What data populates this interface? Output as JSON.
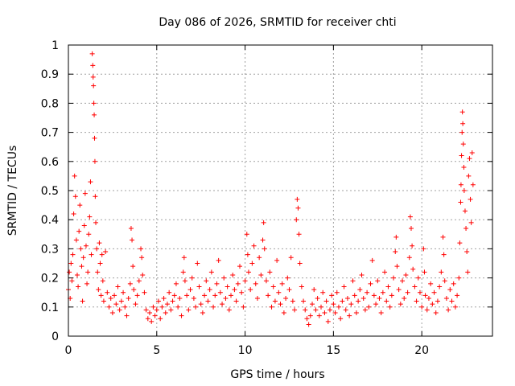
{
  "chart_data": {
    "type": "scatter",
    "title": "Day 086 of 2026, SRMTID for receiver chti",
    "xlabel": "GPS time / hours",
    "ylabel": "SRMTID / TECUs",
    "xlim": [
      0,
      24
    ],
    "ylim": [
      0,
      1
    ],
    "xticks": [
      0,
      5,
      10,
      15,
      20
    ],
    "yticks": [
      0,
      0.1,
      0.2,
      0.3,
      0.4,
      0.5,
      0.6,
      0.7,
      0.8,
      0.9,
      1
    ],
    "x_tick_labels": [
      "0",
      "5",
      "10",
      "15",
      "20"
    ],
    "y_tick_labels": [
      "0",
      "0.1",
      "0.2",
      "0.3",
      "0.4",
      "0.5",
      "0.6",
      "0.7",
      "0.8",
      "0.9",
      "1"
    ],
    "grid": true,
    "marker": "+",
    "color": "#ff0000",
    "series": [
      {
        "name": "SRMTID",
        "points": [
          [
            0.0,
            0.16
          ],
          [
            0.05,
            0.22
          ],
          [
            0.1,
            0.13
          ],
          [
            0.15,
            0.25
          ],
          [
            0.2,
            0.19
          ],
          [
            0.25,
            0.28
          ],
          [
            0.3,
            0.42
          ],
          [
            0.35,
            0.55
          ],
          [
            0.4,
            0.48
          ],
          [
            0.45,
            0.33
          ],
          [
            0.5,
            0.21
          ],
          [
            0.55,
            0.17
          ],
          [
            0.6,
            0.36
          ],
          [
            0.65,
            0.45
          ],
          [
            0.7,
            0.3
          ],
          [
            0.75,
            0.24
          ],
          [
            0.8,
            0.12
          ],
          [
            0.85,
            0.27
          ],
          [
            0.9,
            0.38
          ],
          [
            0.95,
            0.49
          ],
          [
            1.0,
            0.31
          ],
          [
            1.05,
            0.18
          ],
          [
            1.1,
            0.22
          ],
          [
            1.15,
            0.35
          ],
          [
            1.2,
            0.41
          ],
          [
            1.25,
            0.53
          ],
          [
            1.3,
            0.28
          ],
          [
            1.35,
            0.97
          ],
          [
            1.38,
            0.93
          ],
          [
            1.4,
            0.89
          ],
          [
            1.42,
            0.86
          ],
          [
            1.44,
            0.8
          ],
          [
            1.46,
            0.76
          ],
          [
            1.48,
            0.68
          ],
          [
            1.5,
            0.6
          ],
          [
            1.52,
            0.48
          ],
          [
            1.55,
            0.39
          ],
          [
            1.6,
            0.3
          ],
          [
            1.65,
            0.22
          ],
          [
            1.7,
            0.16
          ],
          [
            1.75,
            0.32
          ],
          [
            1.8,
            0.25
          ],
          [
            1.85,
            0.14
          ],
          [
            1.9,
            0.28
          ],
          [
            1.95,
            0.19
          ],
          [
            2.0,
            0.12
          ],
          [
            2.1,
            0.29
          ],
          [
            2.2,
            0.15
          ],
          [
            2.3,
            0.1
          ],
          [
            2.4,
            0.13
          ],
          [
            2.5,
            0.08
          ],
          [
            2.6,
            0.14
          ],
          [
            2.7,
            0.11
          ],
          [
            2.8,
            0.17
          ],
          [
            2.9,
            0.09
          ],
          [
            3.0,
            0.12
          ],
          [
            3.1,
            0.15
          ],
          [
            3.2,
            0.1
          ],
          [
            3.3,
            0.07
          ],
          [
            3.4,
            0.13
          ],
          [
            3.5,
            0.18
          ],
          [
            3.55,
            0.37
          ],
          [
            3.6,
            0.33
          ],
          [
            3.65,
            0.24
          ],
          [
            3.7,
            0.16
          ],
          [
            3.8,
            0.11
          ],
          [
            3.9,
            0.14
          ],
          [
            4.0,
            0.19
          ],
          [
            4.1,
            0.3
          ],
          [
            4.15,
            0.27
          ],
          [
            4.2,
            0.21
          ],
          [
            4.3,
            0.15
          ],
          [
            4.4,
            0.09
          ],
          [
            4.5,
            0.06
          ],
          [
            4.6,
            0.08
          ],
          [
            4.7,
            0.05
          ],
          [
            4.8,
            0.1
          ],
          [
            4.9,
            0.07
          ],
          [
            5.0,
            0.09
          ],
          [
            5.1,
            0.12
          ],
          [
            5.2,
            0.06
          ],
          [
            5.3,
            0.1
          ],
          [
            5.4,
            0.13
          ],
          [
            5.5,
            0.08
          ],
          [
            5.6,
            0.11
          ],
          [
            5.7,
            0.15
          ],
          [
            5.8,
            0.09
          ],
          [
            5.9,
            0.12
          ],
          [
            6.0,
            0.14
          ],
          [
            6.1,
            0.18
          ],
          [
            6.2,
            0.1
          ],
          [
            6.3,
            0.13
          ],
          [
            6.4,
            0.07
          ],
          [
            6.5,
            0.22
          ],
          [
            6.55,
            0.27
          ],
          [
            6.6,
            0.19
          ],
          [
            6.7,
            0.14
          ],
          [
            6.8,
            0.09
          ],
          [
            6.9,
            0.16
          ],
          [
            7.0,
            0.2
          ],
          [
            7.1,
            0.13
          ],
          [
            7.2,
            0.1
          ],
          [
            7.3,
            0.25
          ],
          [
            7.4,
            0.17
          ],
          [
            7.5,
            0.11
          ],
          [
            7.6,
            0.08
          ],
          [
            7.7,
            0.14
          ],
          [
            7.8,
            0.19
          ],
          [
            7.9,
            0.12
          ],
          [
            8.0,
            0.16
          ],
          [
            8.1,
            0.22
          ],
          [
            8.2,
            0.1
          ],
          [
            8.3,
            0.14
          ],
          [
            8.4,
            0.18
          ],
          [
            8.5,
            0.26
          ],
          [
            8.6,
            0.15
          ],
          [
            8.7,
            0.11
          ],
          [
            8.8,
            0.2
          ],
          [
            8.9,
            0.13
          ],
          [
            9.0,
            0.17
          ],
          [
            9.1,
            0.09
          ],
          [
            9.2,
            0.14
          ],
          [
            9.3,
            0.21
          ],
          [
            9.4,
            0.16
          ],
          [
            9.5,
            0.12
          ],
          [
            9.6,
            0.18
          ],
          [
            9.7,
            0.24
          ],
          [
            9.8,
            0.15
          ],
          [
            9.9,
            0.1
          ],
          [
            10.0,
            0.19
          ],
          [
            10.1,
            0.35
          ],
          [
            10.15,
            0.28
          ],
          [
            10.2,
            0.22
          ],
          [
            10.3,
            0.16
          ],
          [
            10.4,
            0.25
          ],
          [
            10.5,
            0.31
          ],
          [
            10.6,
            0.18
          ],
          [
            10.7,
            0.13
          ],
          [
            10.8,
            0.27
          ],
          [
            10.9,
            0.21
          ],
          [
            11.0,
            0.33
          ],
          [
            11.05,
            0.39
          ],
          [
            11.1,
            0.3
          ],
          [
            11.2,
            0.19
          ],
          [
            11.3,
            0.14
          ],
          [
            11.4,
            0.22
          ],
          [
            11.5,
            0.1
          ],
          [
            11.6,
            0.17
          ],
          [
            11.7,
            0.12
          ],
          [
            11.8,
            0.26
          ],
          [
            11.9,
            0.15
          ],
          [
            12.0,
            0.11
          ],
          [
            12.1,
            0.18
          ],
          [
            12.2,
            0.08
          ],
          [
            12.3,
            0.13
          ],
          [
            12.4,
            0.2
          ],
          [
            12.5,
            0.16
          ],
          [
            12.6,
            0.27
          ],
          [
            12.7,
            0.12
          ],
          [
            12.8,
            0.09
          ],
          [
            12.9,
            0.4
          ],
          [
            12.95,
            0.47
          ],
          [
            13.0,
            0.44
          ],
          [
            13.05,
            0.35
          ],
          [
            13.1,
            0.25
          ],
          [
            13.2,
            0.17
          ],
          [
            13.3,
            0.12
          ],
          [
            13.4,
            0.09
          ],
          [
            13.5,
            0.06
          ],
          [
            13.6,
            0.04
          ],
          [
            13.7,
            0.07
          ],
          [
            13.8,
            0.11
          ],
          [
            13.9,
            0.16
          ],
          [
            14.0,
            0.09
          ],
          [
            14.1,
            0.13
          ],
          [
            14.2,
            0.07
          ],
          [
            14.3,
            0.1
          ],
          [
            14.4,
            0.15
          ],
          [
            14.5,
            0.08
          ],
          [
            14.6,
            0.12
          ],
          [
            14.7,
            0.05
          ],
          [
            14.8,
            0.09
          ],
          [
            14.9,
            0.14
          ],
          [
            15.0,
            0.11
          ],
          [
            15.1,
            0.08
          ],
          [
            15.2,
            0.15
          ],
          [
            15.3,
            0.1
          ],
          [
            15.4,
            0.06
          ],
          [
            15.5,
            0.12
          ],
          [
            15.6,
            0.17
          ],
          [
            15.7,
            0.09
          ],
          [
            15.8,
            0.13
          ],
          [
            15.9,
            0.07
          ],
          [
            16.0,
            0.11
          ],
          [
            16.1,
            0.19
          ],
          [
            16.2,
            0.14
          ],
          [
            16.3,
            0.08
          ],
          [
            16.4,
            0.12
          ],
          [
            16.5,
            0.16
          ],
          [
            16.6,
            0.21
          ],
          [
            16.7,
            0.13
          ],
          [
            16.8,
            0.09
          ],
          [
            16.9,
            0.15
          ],
          [
            17.0,
            0.1
          ],
          [
            17.1,
            0.18
          ],
          [
            17.2,
            0.26
          ],
          [
            17.3,
            0.14
          ],
          [
            17.4,
            0.11
          ],
          [
            17.5,
            0.19
          ],
          [
            17.6,
            0.13
          ],
          [
            17.7,
            0.08
          ],
          [
            17.8,
            0.15
          ],
          [
            17.9,
            0.22
          ],
          [
            18.0,
            0.12
          ],
          [
            18.1,
            0.17
          ],
          [
            18.2,
            0.1
          ],
          [
            18.3,
            0.14
          ],
          [
            18.4,
            0.2
          ],
          [
            18.5,
            0.29
          ],
          [
            18.55,
            0.34
          ],
          [
            18.6,
            0.24
          ],
          [
            18.7,
            0.16
          ],
          [
            18.8,
            0.11
          ],
          [
            18.9,
            0.19
          ],
          [
            19.0,
            0.13
          ],
          [
            19.1,
            0.21
          ],
          [
            19.2,
            0.15
          ],
          [
            19.3,
            0.27
          ],
          [
            19.35,
            0.41
          ],
          [
            19.4,
            0.37
          ],
          [
            19.45,
            0.31
          ],
          [
            19.5,
            0.23
          ],
          [
            19.6,
            0.17
          ],
          [
            19.7,
            0.12
          ],
          [
            19.8,
            0.2
          ],
          [
            19.9,
            0.15
          ],
          [
            20.0,
            0.1
          ],
          [
            20.1,
            0.3
          ],
          [
            20.15,
            0.22
          ],
          [
            20.2,
            0.14
          ],
          [
            20.3,
            0.09
          ],
          [
            20.4,
            0.13
          ],
          [
            20.5,
            0.18
          ],
          [
            20.6,
            0.11
          ],
          [
            20.7,
            0.15
          ],
          [
            20.8,
            0.08
          ],
          [
            20.9,
            0.12
          ],
          [
            21.0,
            0.17
          ],
          [
            21.1,
            0.22
          ],
          [
            21.2,
            0.34
          ],
          [
            21.25,
            0.28
          ],
          [
            21.3,
            0.19
          ],
          [
            21.4,
            0.13
          ],
          [
            21.5,
            0.09
          ],
          [
            21.6,
            0.16
          ],
          [
            21.7,
            0.12
          ],
          [
            21.8,
            0.18
          ],
          [
            21.9,
            0.1
          ],
          [
            22.0,
            0.14
          ],
          [
            22.1,
            0.2
          ],
          [
            22.15,
            0.32
          ],
          [
            22.2,
            0.46
          ],
          [
            22.22,
            0.52
          ],
          [
            22.25,
            0.62
          ],
          [
            22.28,
            0.7
          ],
          [
            22.3,
            0.77
          ],
          [
            22.32,
            0.73
          ],
          [
            22.35,
            0.66
          ],
          [
            22.38,
            0.58
          ],
          [
            22.4,
            0.5
          ],
          [
            22.45,
            0.43
          ],
          [
            22.5,
            0.37
          ],
          [
            22.55,
            0.29
          ],
          [
            22.6,
            0.22
          ],
          [
            22.65,
            0.55
          ],
          [
            22.7,
            0.61
          ],
          [
            22.75,
            0.47
          ],
          [
            22.8,
            0.39
          ],
          [
            22.85,
            0.63
          ],
          [
            22.9,
            0.52
          ]
        ]
      }
    ]
  }
}
